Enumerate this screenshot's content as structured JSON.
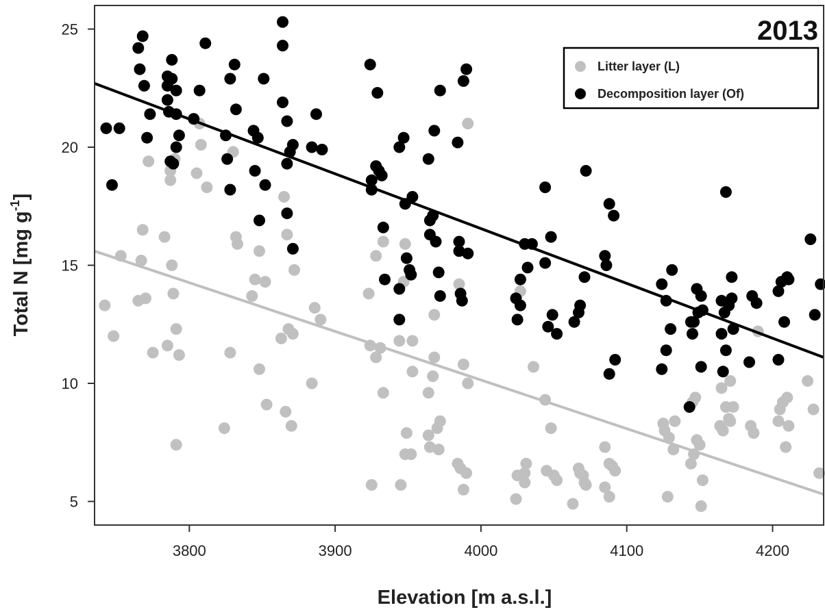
{
  "chart_data": {
    "type": "scatter",
    "title": "2013",
    "xlabel": "Elevation  [m  a.s.l.]",
    "ylabel_main": "Total  N  [mg  g",
    "ylabel_sup": "-1",
    "ylabel_close": "]",
    "xlim": [
      3735,
      4235
    ],
    "ylim": [
      4.0,
      26.0
    ],
    "xticks": [
      3800,
      3900,
      4000,
      4100,
      4200
    ],
    "yticks": [
      5,
      10,
      15,
      20,
      25
    ],
    "legend_position": "top-right",
    "series": [
      {
        "name": "Litter layer (L)",
        "color": "#c0c0c0",
        "fit": {
          "x": [
            3735,
            4235
          ],
          "y": [
            15.6,
            5.3
          ]
        },
        "points": [
          [
            3742,
            13.3
          ],
          [
            3748,
            12.0
          ],
          [
            3753,
            15.4
          ],
          [
            3765,
            13.5
          ],
          [
            3767,
            15.2
          ],
          [
            3768,
            16.5
          ],
          [
            3770,
            13.6
          ],
          [
            3772,
            19.4
          ],
          [
            3775,
            11.3
          ],
          [
            3783,
            16.2
          ],
          [
            3785,
            11.6
          ],
          [
            3787,
            18.6
          ],
          [
            3787,
            19.0
          ],
          [
            3788,
            15.0
          ],
          [
            3789,
            13.8
          ],
          [
            3790,
            19.5
          ],
          [
            3791,
            12.3
          ],
          [
            3791,
            7.4
          ],
          [
            3793,
            11.2
          ],
          [
            3805,
            18.9
          ],
          [
            3808,
            20.1
          ],
          [
            3807,
            21.0
          ],
          [
            3812,
            18.3
          ],
          [
            3824,
            8.1
          ],
          [
            3828,
            11.3
          ],
          [
            3830,
            19.8
          ],
          [
            3832,
            16.2
          ],
          [
            3833,
            15.9
          ],
          [
            3843,
            13.7
          ],
          [
            3845,
            14.4
          ],
          [
            3848,
            15.6
          ],
          [
            3848,
            10.6
          ],
          [
            3852,
            14.3
          ],
          [
            3853,
            9.1
          ],
          [
            3863,
            11.9
          ],
          [
            3865,
            17.9
          ],
          [
            3867,
            16.3
          ],
          [
            3866,
            8.8
          ],
          [
            3868,
            12.3
          ],
          [
            3870,
            8.2
          ],
          [
            3871,
            12.1
          ],
          [
            3872,
            14.8
          ],
          [
            3884,
            10.0
          ],
          [
            3886,
            13.2
          ],
          [
            3890,
            12.7
          ],
          [
            3923,
            13.8
          ],
          [
            3924,
            11.6
          ],
          [
            3925,
            5.7
          ],
          [
            3928,
            15.4
          ],
          [
            3928,
            11.1
          ],
          [
            3931,
            11.5
          ],
          [
            3933,
            9.6
          ],
          [
            3933,
            16.0
          ],
          [
            3944,
            11.8
          ],
          [
            3945,
            5.7
          ],
          [
            3947,
            14.3
          ],
          [
            3948,
            15.9
          ],
          [
            3948,
            7.0
          ],
          [
            3949,
            7.9
          ],
          [
            3952,
            7.0
          ],
          [
            3953,
            10.5
          ],
          [
            3953,
            11.8
          ],
          [
            3964,
            9.6
          ],
          [
            3964,
            7.8
          ],
          [
            3965,
            7.3
          ],
          [
            3967,
            10.3
          ],
          [
            3968,
            11.1
          ],
          [
            3968,
            12.9
          ],
          [
            3970,
            8.1
          ],
          [
            3971,
            7.2
          ],
          [
            3972,
            8.4
          ],
          [
            3984,
            6.6
          ],
          [
            3985,
            14.2
          ],
          [
            3986,
            6.4
          ],
          [
            3988,
            5.5
          ],
          [
            3988,
            10.8
          ],
          [
            3990,
            6.2
          ],
          [
            3991,
            21.0
          ],
          [
            3991,
            10.0
          ],
          [
            4024,
            5.1
          ],
          [
            4025,
            6.1
          ],
          [
            4027,
            13.9
          ],
          [
            4030,
            6.2
          ],
          [
            4030,
            5.8
          ],
          [
            4031,
            6.6
          ],
          [
            4036,
            10.7
          ],
          [
            4044,
            9.3
          ],
          [
            4045,
            6.3
          ],
          [
            4048,
            8.1
          ],
          [
            4050,
            6.1
          ],
          [
            4052,
            5.9
          ],
          [
            4063,
            4.9
          ],
          [
            4067,
            6.4
          ],
          [
            4068,
            6.2
          ],
          [
            4070,
            6.1
          ],
          [
            4071,
            5.8
          ],
          [
            4072,
            5.7
          ],
          [
            4085,
            5.6
          ],
          [
            4085,
            7.3
          ],
          [
            4088,
            5.2
          ],
          [
            4088,
            6.6
          ],
          [
            4090,
            6.5
          ],
          [
            4092,
            6.3
          ],
          [
            4125,
            8.3
          ],
          [
            4126,
            8.0
          ],
          [
            4128,
            5.2
          ],
          [
            4129,
            7.7
          ],
          [
            4132,
            7.2
          ],
          [
            4133,
            8.4
          ],
          [
            4144,
            6.6
          ],
          [
            4145,
            9.2
          ],
          [
            4146,
            7.0
          ],
          [
            4147,
            9.4
          ],
          [
            4148,
            7.6
          ],
          [
            4150,
            7.4
          ],
          [
            4151,
            4.8
          ],
          [
            4152,
            5.9
          ],
          [
            4164,
            8.2
          ],
          [
            4165,
            9.8
          ],
          [
            4166,
            8.0
          ],
          [
            4168,
            9.0
          ],
          [
            4170,
            8.5
          ],
          [
            4171,
            8.4
          ],
          [
            4171,
            10.1
          ],
          [
            4173,
            9.0
          ],
          [
            4185,
            8.2
          ],
          [
            4187,
            7.9
          ],
          [
            4190,
            12.2
          ],
          [
            4204,
            8.4
          ],
          [
            4205,
            8.9
          ],
          [
            4207,
            9.2
          ],
          [
            4209,
            7.3
          ],
          [
            4210,
            9.4
          ],
          [
            4211,
            8.2
          ],
          [
            4224,
            10.1
          ],
          [
            4228,
            8.9
          ],
          [
            4232,
            6.2
          ]
        ]
      },
      {
        "name": "Decomposition layer (Of)",
        "color": "#000000",
        "fit": {
          "x": [
            3735,
            4235
          ],
          "y": [
            22.7,
            11.1
          ]
        },
        "points": [
          [
            3743,
            20.8
          ],
          [
            3747,
            18.4
          ],
          [
            3752,
            20.8
          ],
          [
            3765,
            24.2
          ],
          [
            3766,
            23.3
          ],
          [
            3768,
            24.7
          ],
          [
            3769,
            22.6
          ],
          [
            3771,
            20.4
          ],
          [
            3773,
            21.4
          ],
          [
            3785,
            23.0
          ],
          [
            3785,
            22.6
          ],
          [
            3785,
            22.0
          ],
          [
            3786,
            21.5
          ],
          [
            3787,
            19.4
          ],
          [
            3788,
            23.7
          ],
          [
            3788,
            22.9
          ],
          [
            3789,
            19.3
          ],
          [
            3791,
            22.4
          ],
          [
            3791,
            20.0
          ],
          [
            3791,
            21.4
          ],
          [
            3793,
            20.5
          ],
          [
            3803,
            21.2
          ],
          [
            3807,
            22.4
          ],
          [
            3811,
            24.4
          ],
          [
            3825,
            20.5
          ],
          [
            3826,
            19.5
          ],
          [
            3828,
            22.9
          ],
          [
            3828,
            18.2
          ],
          [
            3831,
            23.5
          ],
          [
            3832,
            21.6
          ],
          [
            3844,
            20.7
          ],
          [
            3845,
            19.0
          ],
          [
            3847,
            20.4
          ],
          [
            3848,
            16.9
          ],
          [
            3851,
            22.9
          ],
          [
            3852,
            18.4
          ],
          [
            3864,
            25.3
          ],
          [
            3864,
            24.3
          ],
          [
            3864,
            21.9
          ],
          [
            3867,
            19.3
          ],
          [
            3867,
            21.1
          ],
          [
            3867,
            17.2
          ],
          [
            3869,
            19.8
          ],
          [
            3871,
            20.1
          ],
          [
            3871,
            15.7
          ],
          [
            3884,
            20.0
          ],
          [
            3887,
            21.4
          ],
          [
            3891,
            19.9
          ],
          [
            3924,
            23.5
          ],
          [
            3925,
            18.6
          ],
          [
            3925,
            18.2
          ],
          [
            3928,
            19.2
          ],
          [
            3929,
            22.3
          ],
          [
            3930,
            19.0
          ],
          [
            3932,
            18.8
          ],
          [
            3933,
            16.6
          ],
          [
            3934,
            14.4
          ],
          [
            3944,
            20.0
          ],
          [
            3944,
            14.0
          ],
          [
            3944,
            12.7
          ],
          [
            3947,
            20.4
          ],
          [
            3948,
            17.6
          ],
          [
            3949,
            15.3
          ],
          [
            3951,
            14.8
          ],
          [
            3952,
            14.6
          ],
          [
            3953,
            17.9
          ],
          [
            3964,
            19.5
          ],
          [
            3965,
            16.9
          ],
          [
            3965,
            16.3
          ],
          [
            3967,
            17.1
          ],
          [
            3968,
            20.7
          ],
          [
            3969,
            16.0
          ],
          [
            3971,
            14.7
          ],
          [
            3972,
            13.7
          ],
          [
            3972,
            22.4
          ],
          [
            3984,
            20.2
          ],
          [
            3985,
            16.0
          ],
          [
            3985,
            15.6
          ],
          [
            3986,
            13.8
          ],
          [
            3987,
            13.5
          ],
          [
            3988,
            22.8
          ],
          [
            3990,
            23.3
          ],
          [
            3991,
            15.5
          ],
          [
            4024,
            13.6
          ],
          [
            4025,
            12.7
          ],
          [
            4027,
            13.3
          ],
          [
            4027,
            14.4
          ],
          [
            4030,
            15.9
          ],
          [
            4032,
            14.9
          ],
          [
            4035,
            15.9
          ],
          [
            4044,
            18.3
          ],
          [
            4044,
            15.1
          ],
          [
            4046,
            12.4
          ],
          [
            4048,
            16.2
          ],
          [
            4049,
            12.9
          ],
          [
            4052,
            12.1
          ],
          [
            4064,
            12.6
          ],
          [
            4067,
            13.0
          ],
          [
            4068,
            13.3
          ],
          [
            4071,
            14.5
          ],
          [
            4072,
            19.0
          ],
          [
            4085,
            15.4
          ],
          [
            4086,
            15.0
          ],
          [
            4088,
            17.6
          ],
          [
            4088,
            10.4
          ],
          [
            4091,
            17.1
          ],
          [
            4092,
            11.0
          ],
          [
            4124,
            14.2
          ],
          [
            4124,
            10.6
          ],
          [
            4127,
            13.5
          ],
          [
            4127,
            11.4
          ],
          [
            4130,
            12.3
          ],
          [
            4131,
            14.8
          ],
          [
            4143,
            9.0
          ],
          [
            4144,
            12.6
          ],
          [
            4145,
            12.1
          ],
          [
            4146,
            12.6
          ],
          [
            4148,
            14.0
          ],
          [
            4149,
            13.0
          ],
          [
            4151,
            13.7
          ],
          [
            4151,
            10.7
          ],
          [
            4152,
            13.1
          ],
          [
            4165,
            13.5
          ],
          [
            4165,
            12.1
          ],
          [
            4166,
            10.5
          ],
          [
            4167,
            13.0
          ],
          [
            4168,
            11.4
          ],
          [
            4168,
            18.1
          ],
          [
            4170,
            13.3
          ],
          [
            4172,
            14.5
          ],
          [
            4172,
            13.6
          ],
          [
            4173,
            12.3
          ],
          [
            4184,
            10.9
          ],
          [
            4186,
            13.7
          ],
          [
            4189,
            13.4
          ],
          [
            4204,
            13.9
          ],
          [
            4204,
            11.0
          ],
          [
            4206,
            14.3
          ],
          [
            4208,
            12.6
          ],
          [
            4210,
            14.5
          ],
          [
            4211,
            14.4
          ],
          [
            4226,
            16.1
          ],
          [
            4229,
            12.9
          ],
          [
            4233,
            14.2
          ]
        ]
      }
    ]
  }
}
